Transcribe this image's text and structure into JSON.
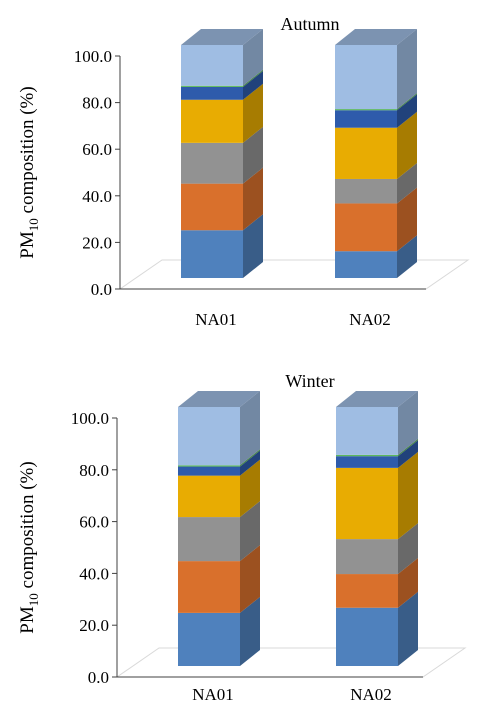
{
  "ylabel_main": "PM",
  "ylabel_sub": "10",
  "ylabel_rest": " composition (%)",
  "chart_data": [
    {
      "type": "bar",
      "stacked": true,
      "title": "Autumn",
      "categories": [
        "NA01",
        "NA02"
      ],
      "ylim": [
        0,
        100
      ],
      "yticks": [
        "0.0",
        "20.0",
        "40.0",
        "60.0",
        "80.0",
        "100.0"
      ],
      "grid": false,
      "series": [
        {
          "color": "#4f81bd",
          "values": [
            20.5,
            11.5
          ]
        },
        {
          "color": "#d9702c",
          "values": [
            20.0,
            20.5
          ]
        },
        {
          "color": "#929292",
          "values": [
            17.5,
            10.5
          ]
        },
        {
          "color": "#e8ac02",
          "values": [
            18.5,
            22.0
          ]
        },
        {
          "color": "#2e5bab",
          "values": [
            5.5,
            7.5
          ]
        },
        {
          "color": "#5cb85c",
          "values": [
            0.5,
            0.5
          ]
        },
        {
          "color": "#9fbde3",
          "values": [
            17.5,
            27.5
          ]
        }
      ]
    },
    {
      "type": "bar",
      "stacked": true,
      "title": "Winter",
      "categories": [
        "NA01",
        "NA02"
      ],
      "ylim": [
        0,
        100
      ],
      "yticks": [
        "0.0",
        "20.0",
        "40.0",
        "60.0",
        "80.0",
        "100.0"
      ],
      "grid": false,
      "series": [
        {
          "color": "#4f81bd",
          "values": [
            20.5,
            22.5
          ]
        },
        {
          "color": "#d9702c",
          "values": [
            20.0,
            13.0
          ]
        },
        {
          "color": "#929292",
          "values": [
            17.0,
            13.5
          ]
        },
        {
          "color": "#e8ac02",
          "values": [
            16.0,
            27.5
          ]
        },
        {
          "color": "#2e5bab",
          "values": [
            3.5,
            4.5
          ]
        },
        {
          "color": "#5cb85c",
          "values": [
            0.5,
            0.5
          ]
        },
        {
          "color": "#9fbde3",
          "values": [
            22.5,
            18.5
          ]
        }
      ]
    }
  ]
}
